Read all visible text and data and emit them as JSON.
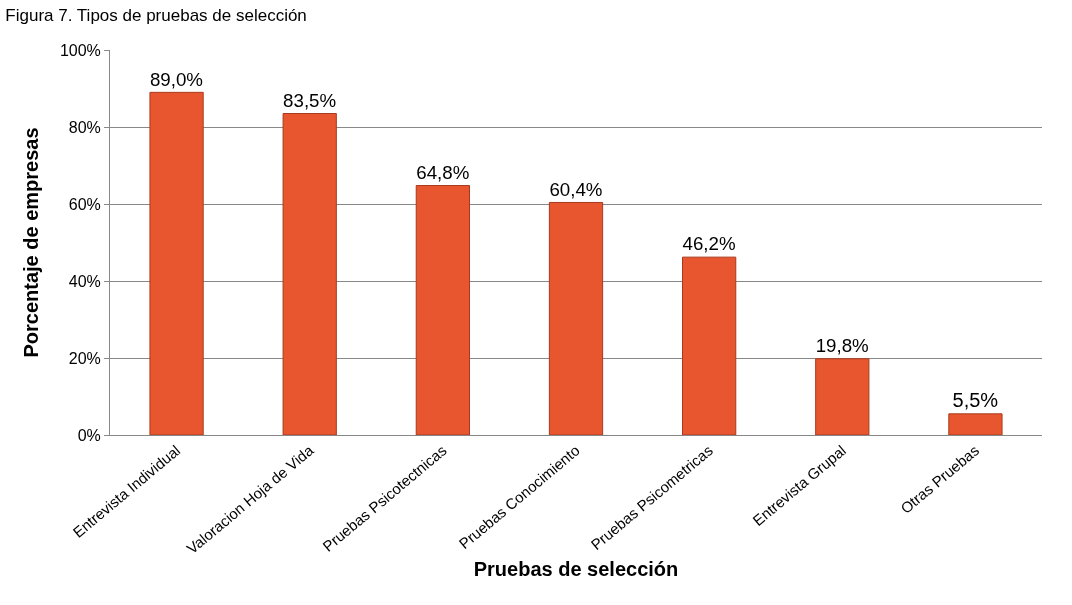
{
  "chart_data": {
    "type": "bar",
    "title": "Figura 7. Tipos de pruebas de selección",
    "xlabel": "Pruebas de selección",
    "ylabel": "Porcentaje de empresas",
    "categories": [
      "Entrevista Individual",
      "Valoracion Hoja de Vida",
      "Pruebas Psicotectnicas",
      "Pruebas Conocimiento",
      "Pruebas Psicometricas",
      "Entrevista Grupal",
      "Otras Pruebas"
    ],
    "values": [
      89.0,
      83.5,
      64.8,
      60.4,
      46.2,
      19.8,
      5.5
    ],
    "value_labels": [
      "89,0%",
      "83,5%",
      "64,8%",
      "60,4%",
      "46,2%",
      "19,8%",
      "5,5%"
    ],
    "color": "#e8562f",
    "ylim": [
      0,
      100
    ],
    "yticks": [
      {
        "value": 0,
        "label": "0%"
      },
      {
        "value": 20,
        "label": "20%"
      },
      {
        "value": 40,
        "label": "40%"
      },
      {
        "value": 60,
        "label": "60%"
      },
      {
        "value": 80,
        "label": "80%"
      },
      {
        "value": 100,
        "label": "100%"
      }
    ],
    "grid": "y",
    "legend": false
  }
}
